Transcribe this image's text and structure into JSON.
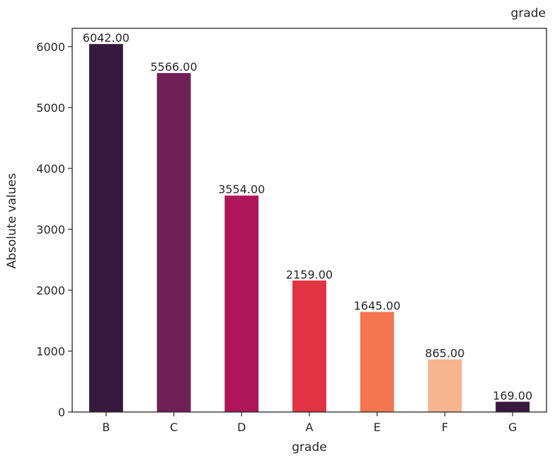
{
  "chart_data": {
    "type": "bar",
    "title": "grade",
    "xlabel": "grade",
    "ylabel": "Absolute values",
    "categories": [
      "B",
      "C",
      "D",
      "A",
      "E",
      "F",
      "G"
    ],
    "values": [
      6042,
      5566,
      3554,
      2159,
      1645,
      865,
      169
    ],
    "data_labels": [
      "6042.00",
      "5566.00",
      "3554.00",
      "2159.00",
      "1645.00",
      "865.00",
      "169.00"
    ],
    "colors": [
      "#35193e",
      "#701f57",
      "#ad1759",
      "#e13342",
      "#f37651",
      "#f6b48f",
      "#35193e"
    ],
    "ylim": [
      0,
      6300
    ],
    "yticks": [
      0,
      1000,
      2000,
      3000,
      4000,
      5000,
      6000
    ],
    "grid": false,
    "legend": "none"
  }
}
